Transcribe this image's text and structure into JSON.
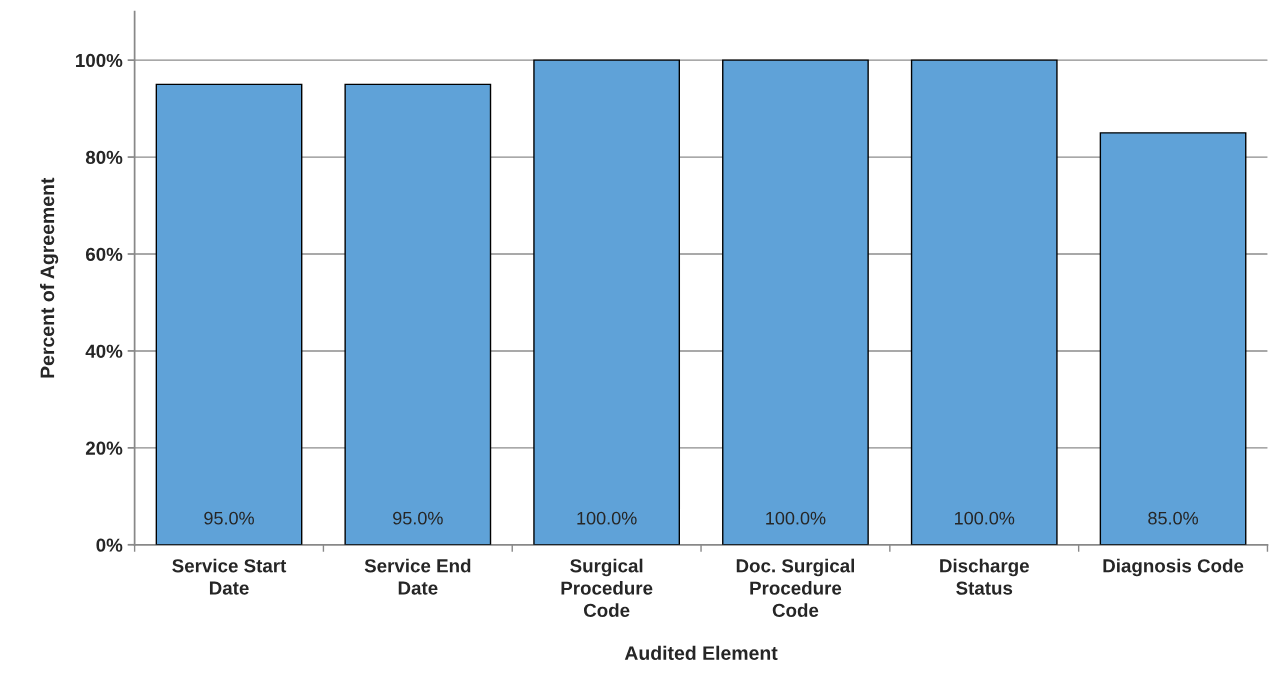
{
  "chart_data": {
    "type": "bar",
    "xlabel": "Audited Element",
    "ylabel": "Percent of Agreement",
    "categories": [
      "Service Start\nDate",
      "Service End\nDate",
      "Surgical\nProcedure\nCode",
      "Doc. Surgical\nProcedure\nCode",
      "Discharge\nStatus",
      "Diagnosis Code"
    ],
    "values": [
      95,
      95,
      100,
      100,
      100,
      85
    ],
    "value_labels": [
      "95.0%",
      "95.0%",
      "100.0%",
      "100.0%",
      "100.0%",
      "85.0%"
    ],
    "color": "#5fa2d8",
    "ylim": [
      0,
      110
    ],
    "yticks": [
      {
        "value": 0,
        "label": "0%"
      },
      {
        "value": 20,
        "label": "20%"
      },
      {
        "value": 40,
        "label": "40%"
      },
      {
        "value": 60,
        "label": "60%"
      },
      {
        "value": 80,
        "label": "80%"
      },
      {
        "value": 100,
        "label": "100%"
      }
    ],
    "grid": "y"
  }
}
